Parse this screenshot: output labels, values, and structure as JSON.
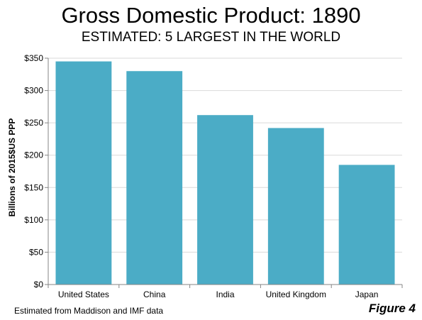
{
  "title": "Gross Domestic Product: 1890",
  "subtitle": "ESTIMATED: 5 LARGEST IN THE WORLD",
  "footnote": "Estimated from Maddison and IMF data",
  "figure_label": "Figure 4",
  "colors": {
    "bar": "#4bacc6",
    "gridline": "#d9d9d9",
    "axis": "#868686"
  },
  "chart_data": {
    "type": "bar",
    "title": "Gross Domestic Product: 1890",
    "subtitle": "ESTIMATED: 5 LARGEST IN THE WORLD",
    "xlabel": "",
    "ylabel": "Billions of 2015$US  PPP",
    "categories": [
      "United States",
      "China",
      "India",
      "United Kingdom",
      "Japan"
    ],
    "values": [
      345,
      330,
      262,
      242,
      185
    ],
    "ylim": [
      0,
      350
    ],
    "yticks": [
      0,
      50,
      100,
      150,
      200,
      250,
      300,
      350
    ],
    "ytick_labels": [
      "$0",
      "$50",
      "$100",
      "$150",
      "$200",
      "$250",
      "$300",
      "$350"
    ],
    "grid": true,
    "legend": "none"
  }
}
